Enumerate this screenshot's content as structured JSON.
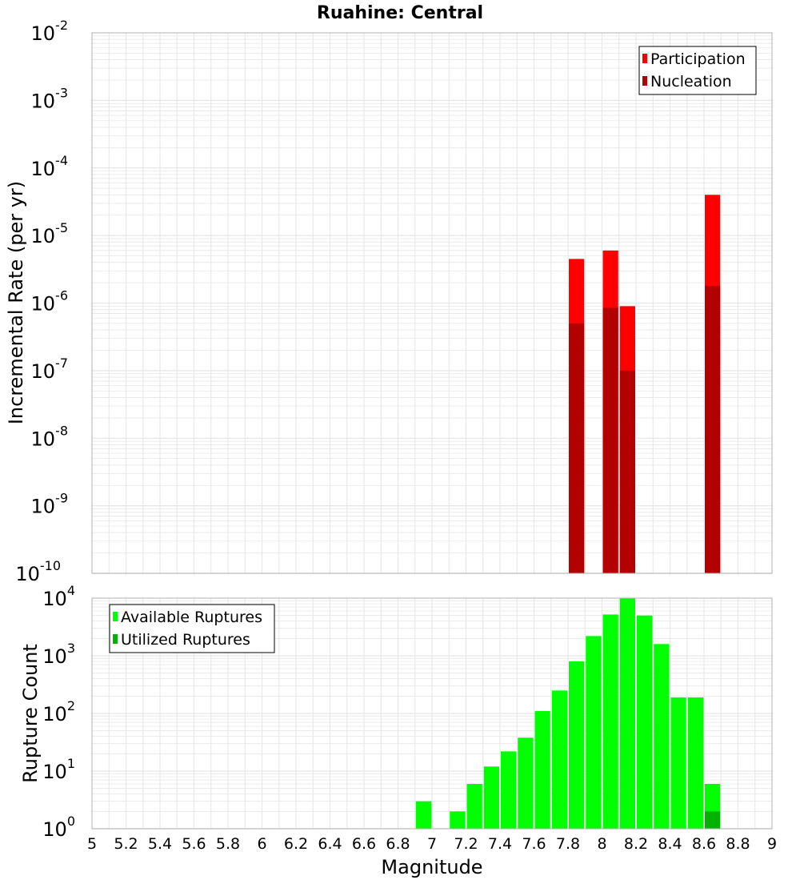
{
  "title": "Ruahine: Central",
  "xlabel": "Magnitude",
  "colors": {
    "participation": "#ff0000",
    "nucleation": "#b30000",
    "available": "#00ff00",
    "utilized": "#00b300",
    "grid": "#e6e6e6",
    "frame": "#b0b0b0"
  },
  "chart_data": [
    {
      "type": "bar",
      "panel": "top",
      "ylabel": "Incremental Rate (per yr)",
      "yscale": "log",
      "ylim_exp": [
        -10,
        -2
      ],
      "xlim": [
        5,
        9
      ],
      "legend_position": "top-right",
      "series": [
        {
          "name": "Participation",
          "x": [
            7.85,
            8.05,
            8.15,
            8.65
          ],
          "values": [
            4.5e-06,
            6e-06,
            9e-07,
            4e-05
          ]
        },
        {
          "name": "Nucleation",
          "x": [
            7.85,
            8.05,
            8.15,
            8.65
          ],
          "values": [
            5e-07,
            8.5e-07,
            1e-07,
            1.8e-06
          ]
        }
      ]
    },
    {
      "type": "bar",
      "panel": "bottom",
      "ylabel": "Rupture Count",
      "yscale": "log",
      "ylim_exp": [
        0,
        4
      ],
      "xlim": [
        5,
        9
      ],
      "legend_position": "top-left",
      "series": [
        {
          "name": "Available Ruptures",
          "x": [
            6.95,
            7.15,
            7.25,
            7.35,
            7.45,
            7.55,
            7.65,
            7.75,
            7.85,
            7.95,
            8.05,
            8.15,
            8.25,
            8.35,
            8.45,
            8.55,
            8.65
          ],
          "values": [
            3,
            2,
            6,
            12,
            22,
            38,
            110,
            250,
            800,
            2200,
            5200,
            10000,
            5000,
            1600,
            190,
            190,
            6
          ]
        },
        {
          "name": "Utilized Ruptures",
          "x": [
            7.85,
            8.05,
            8.15,
            8.65
          ],
          "values": [
            1,
            1,
            1,
            2
          ]
        }
      ]
    }
  ],
  "xticks": [
    "5",
    "5.2",
    "5.4",
    "5.6",
    "5.8",
    "6",
    "6.2",
    "6.4",
    "6.6",
    "6.8",
    "7",
    "7.2",
    "7.4",
    "7.6",
    "7.8",
    "8",
    "8.2",
    "8.4",
    "8.6",
    "8.8",
    "9"
  ]
}
